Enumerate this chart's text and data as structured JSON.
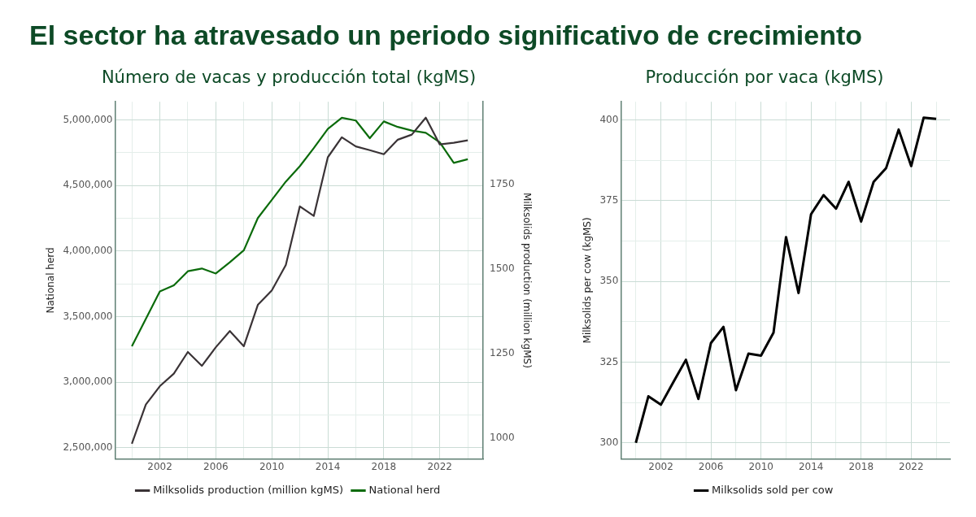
{
  "chart_data": [
    {
      "type": "line",
      "title": "Número de vacas y producción total (kgMS)",
      "annotations": [
        "El sector ha atravesado un periodo significativo de crecimiento"
      ],
      "ylabel": "National herd",
      "y2label": "Milksolids production (million kgMS)",
      "x": [
        2000,
        2001,
        2002,
        2003,
        2004,
        2005,
        2006,
        2007,
        2008,
        2009,
        2010,
        2011,
        2012,
        2013,
        2014,
        2015,
        2016,
        2017,
        2018,
        2019,
        2020,
        2021,
        2022,
        2023,
        2024
      ],
      "series": [
        {
          "name": "Milksolids production (million kgMS)",
          "color": "#3a3336",
          "axis": "y2",
          "values": [
            984,
            1100,
            1154,
            1191,
            1255,
            1214,
            1269,
            1317,
            1272,
            1394,
            1437,
            1512,
            1685,
            1657,
            1830,
            1889,
            1862,
            1851,
            1839,
            1882,
            1897,
            1947,
            1868,
            1873,
            1880
          ]
        },
        {
          "name": "National herd",
          "color": "#0b6b0b",
          "values": [
            3274000,
            3483000,
            3692000,
            3739000,
            3846000,
            3867000,
            3829000,
            3915000,
            4006000,
            4252000,
            4391000,
            4530000,
            4647000,
            4786000,
            4932000,
            5017000,
            4996000,
            4861000,
            4989000,
            4947000,
            4919000,
            4902000,
            4829000,
            4673000,
            4701000
          ]
        }
      ],
      "xlim": [
        1998.8,
        2025.1
      ],
      "xticks": [
        {
          "value": 2000,
          "label": null
        },
        2002,
        {
          "value": 2004,
          "label": null
        },
        2006,
        {
          "value": 2008,
          "label": null
        },
        2010,
        {
          "value": 2012,
          "label": null
        },
        2014,
        {
          "value": 2016,
          "label": null
        },
        2018,
        {
          "value": 2020,
          "label": null
        },
        2022,
        {
          "value": 2024,
          "label": null
        }
      ],
      "ylim": [
        2414000,
        5139000
      ],
      "yticks": [
        {
          "value": 2500000,
          "label": "2,500,000"
        },
        {
          "value": 2750000,
          "label": null
        },
        {
          "value": 3000000,
          "label": "3,000,000"
        },
        {
          "value": 3250000,
          "label": null
        },
        {
          "value": 3500000,
          "label": "3,500,000"
        },
        {
          "value": 3750000,
          "label": null
        },
        {
          "value": 4000000,
          "label": "4,000,000"
        },
        {
          "value": 4250000,
          "label": null
        },
        {
          "value": 4500000,
          "label": "4,500,000"
        },
        {
          "value": 4750000,
          "label": null
        },
        {
          "value": 5000000,
          "label": "5,000,000"
        }
      ],
      "y2lim": [
        939,
        1994
      ],
      "y2ticks": [
        1000,
        1250,
        1500,
        1750
      ],
      "grid": true,
      "legend": "bottom"
    },
    {
      "type": "line",
      "title": "Producción por vaca (kgMS)",
      "ylabel": "Milksolids per cow (kgMS)",
      "x": [
        2000,
        2001,
        2002,
        2003,
        2004,
        2005,
        2006,
        2007,
        2008,
        2009,
        2010,
        2011,
        2012,
        2013,
        2014,
        2015,
        2016,
        2017,
        2018,
        2019,
        2020,
        2021,
        2022,
        2023,
        2024
      ],
      "series": [
        {
          "name": "Milksolids sold per cow",
          "color": "#000000",
          "values": [
            300,
            314.4,
            311.8,
            318.8,
            325.7,
            313.6,
            330.9,
            335.9,
            316.3,
            327.6,
            327.0,
            334.1,
            363.7,
            346.4,
            370.8,
            376.7,
            372.5,
            380.8,
            368.5,
            380.8,
            385.1,
            397.0,
            385.7,
            400.7,
            400.3
          ]
        }
      ],
      "xlim": [
        1998.8,
        2025.1
      ],
      "xticks": [
        {
          "value": 2000,
          "label": null
        },
        2002,
        {
          "value": 2004,
          "label": null
        },
        2006,
        {
          "value": 2008,
          "label": null
        },
        2010,
        {
          "value": 2012,
          "label": null
        },
        2014,
        {
          "value": 2016,
          "label": null
        },
        2018,
        {
          "value": 2020,
          "label": null
        },
        2022,
        {
          "value": 2024,
          "label": null
        }
      ],
      "ylim": [
        295,
        405.6
      ],
      "yticks": [
        300,
        {
          "value": 312.5,
          "label": null
        },
        325,
        {
          "value": 337.5,
          "label": null
        },
        350,
        {
          "value": 362.5,
          "label": null
        },
        375,
        {
          "value": 387.5,
          "label": null
        },
        400
      ],
      "grid": true,
      "legend": "bottom"
    }
  ]
}
